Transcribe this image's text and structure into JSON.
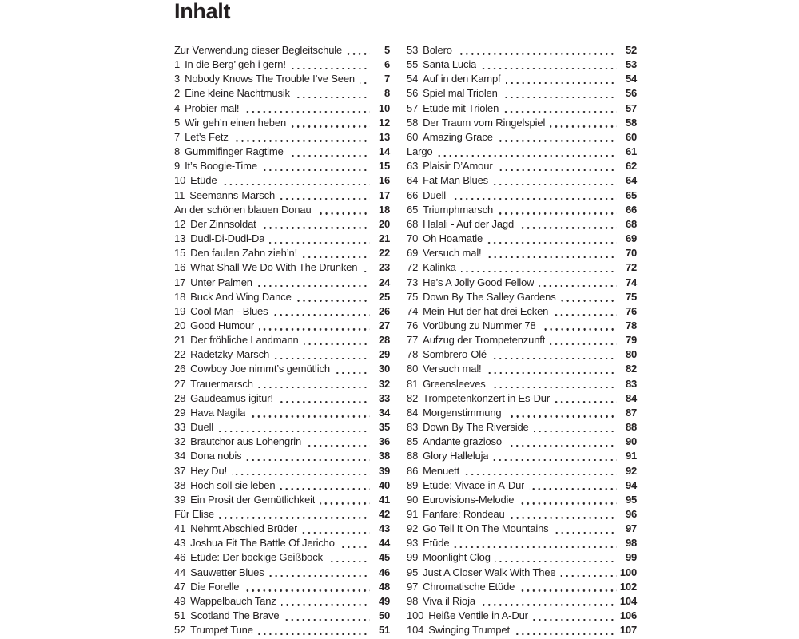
{
  "page": {
    "title": "Inhalt"
  },
  "toc": {
    "columns": [
      {
        "entries": [
          {
            "num": "",
            "title": "Zur Verwendung dieser Begleitschule",
            "page": "5"
          },
          {
            "num": "1",
            "title": "In die Berg’ geh i gern!",
            "page": "6"
          },
          {
            "num": "3",
            "title": "Nobody Knows The Trouble I’ve Seen",
            "page": "7"
          },
          {
            "num": "2",
            "title": "Eine kleine Nachtmusik",
            "page": "8"
          },
          {
            "num": "4",
            "title": "Probier mal!",
            "page": "10"
          },
          {
            "num": "5",
            "title": "Wir geh’n einen heben",
            "page": "12"
          },
          {
            "num": "7",
            "title": "Let’s Fetz",
            "page": "13"
          },
          {
            "num": "8",
            "title": "Gummifinger Ragtime",
            "page": "14"
          },
          {
            "num": "9",
            "title": "It’s Boogie-Time",
            "page": "15"
          },
          {
            "num": "10",
            "title": "Etüde",
            "page": "16"
          },
          {
            "num": "11",
            "title": "Seemanns-Marsch",
            "page": "17"
          },
          {
            "num": "",
            "title": "An der schönen blauen Donau",
            "page": "18"
          },
          {
            "num": "12",
            "title": "Der Zinnsoldat",
            "page": "20"
          },
          {
            "num": "13",
            "title": "Dudl-Di-Dudl-Da",
            "page": "21"
          },
          {
            "num": "15",
            "title": "Den faulen Zahn zieh’n!",
            "page": "22"
          },
          {
            "num": "16",
            "title": "What Shall We Do With The Drunken Sailor",
            "page": "23"
          },
          {
            "num": "17",
            "title": "Unter Palmen",
            "page": "24"
          },
          {
            "num": "18",
            "title": "Buck And Wing Dance",
            "page": "25"
          },
          {
            "num": "19",
            "title": "Cool Man - Blues",
            "page": "26"
          },
          {
            "num": "20",
            "title": "Good Humour",
            "page": "27"
          },
          {
            "num": "21",
            "title": "Der fröhliche Landmann",
            "page": "28"
          },
          {
            "num": "22",
            "title": "Radetzky-Marsch",
            "page": "29"
          },
          {
            "num": "26",
            "title": "Cowboy Joe nimmt’s gemütlich",
            "page": "30"
          },
          {
            "num": "27",
            "title": "Trauermarsch",
            "page": "32"
          },
          {
            "num": "28",
            "title": "Gaudeamus igitur!",
            "page": "33"
          },
          {
            "num": "29",
            "title": "Hava Nagila",
            "page": "34"
          },
          {
            "num": "33",
            "title": "Duell",
            "page": "35"
          },
          {
            "num": "32",
            "title": "Brautchor aus Lohengrin",
            "page": "36"
          },
          {
            "num": "34",
            "title": "Dona nobis",
            "page": "38"
          },
          {
            "num": "37",
            "title": "Hey Du!",
            "page": "39"
          },
          {
            "num": "38",
            "title": "Hoch soll sie leben",
            "page": "40"
          },
          {
            "num": "39",
            "title": "Ein Prosit der Gemütlichkeit",
            "page": "41"
          },
          {
            "num": "",
            "title": "Für Elise",
            "page": "42"
          },
          {
            "num": "41",
            "title": "Nehmt Abschied Brüder",
            "page": "43"
          },
          {
            "num": "43",
            "title": "Joshua Fit The Battle Of Jericho",
            "page": "44"
          },
          {
            "num": "46",
            "title": "Etüde: Der bockige Geißbock",
            "page": "45"
          },
          {
            "num": "44",
            "title": "Sauwetter Blues",
            "page": "46"
          },
          {
            "num": "47",
            "title": "Die Forelle",
            "page": "48"
          },
          {
            "num": "49",
            "title": "Wappelbauch Tanz",
            "page": "49"
          },
          {
            "num": "51",
            "title": "Scotland The Brave",
            "page": "50"
          },
          {
            "num": "52",
            "title": "Trumpet Tune",
            "page": "51"
          }
        ]
      },
      {
        "entries": [
          {
            "num": "53",
            "title": "Bolero",
            "page": "52"
          },
          {
            "num": "55",
            "title": "Santa Lucia",
            "page": "53"
          },
          {
            "num": "54",
            "title": "Auf in den Kampf",
            "page": "54"
          },
          {
            "num": "56",
            "title": "Spiel mal Triolen",
            "page": "56"
          },
          {
            "num": "57",
            "title": "Etüde mit Triolen",
            "page": "57"
          },
          {
            "num": "58",
            "title": "Der Traum vom Ringelspiel",
            "page": "58"
          },
          {
            "num": "60",
            "title": "Amazing Grace",
            "page": "60"
          },
          {
            "num": "",
            "title": "Largo",
            "page": "61"
          },
          {
            "num": "63",
            "title": "Plaisir D’Amour",
            "page": "62"
          },
          {
            "num": "64",
            "title": "Fat Man Blues",
            "page": "64"
          },
          {
            "num": "66",
            "title": "Duell",
            "page": "65"
          },
          {
            "num": "65",
            "title": "Triumphmarsch",
            "page": "66"
          },
          {
            "num": "68",
            "title": "Halali - Auf der Jagd",
            "page": "68"
          },
          {
            "num": "70",
            "title": "Oh Hoamatle",
            "page": "69"
          },
          {
            "num": "69",
            "title": "Versuch mal!",
            "page": "70"
          },
          {
            "num": "72",
            "title": "Kalinka",
            "page": "72"
          },
          {
            "num": "73",
            "title": "He’s A Jolly Good Fellow",
            "page": "74"
          },
          {
            "num": "75",
            "title": "Down By The Salley Gardens",
            "page": "75"
          },
          {
            "num": "74",
            "title": "Mein Hut der hat drei Ecken",
            "page": "76"
          },
          {
            "num": "76",
            "title": "Vorübung zu Nummer 78",
            "page": "78"
          },
          {
            "num": "77",
            "title": "Aufzug der Trompetenzunft",
            "page": "79"
          },
          {
            "num": "78",
            "title": "Sombrero-Olé",
            "page": "80"
          },
          {
            "num": "80",
            "title": "Versuch mal!",
            "page": "82"
          },
          {
            "num": "81",
            "title": "Greensleeves",
            "page": "83"
          },
          {
            "num": "82",
            "title": "Trompetenkonzert in Es-Dur",
            "page": "84"
          },
          {
            "num": "84",
            "title": "Morgenstimmung",
            "page": "87"
          },
          {
            "num": "83",
            "title": "Down By The Riverside",
            "page": "88"
          },
          {
            "num": "85",
            "title": "Andante grazioso",
            "page": "90"
          },
          {
            "num": "88",
            "title": "Glory Halleluja",
            "page": "91"
          },
          {
            "num": "86",
            "title": "Menuett",
            "page": "92"
          },
          {
            "num": "89",
            "title": "Etüde: Vivace in A-Dur",
            "page": "94"
          },
          {
            "num": "90",
            "title": "Eurovisions-Melodie",
            "page": "95"
          },
          {
            "num": "91",
            "title": "Fanfare: Rondeau",
            "page": "96"
          },
          {
            "num": "92",
            "title": "Go Tell It On The Mountains",
            "page": "97"
          },
          {
            "num": "93",
            "title": "Etüde",
            "page": "98"
          },
          {
            "num": "99",
            "title": "Moonlight Clog",
            "page": "99"
          },
          {
            "num": "95",
            "title": "Just A Closer Walk With Thee",
            "page": "100"
          },
          {
            "num": "97",
            "title": "Chromatische Etüde",
            "page": "102"
          },
          {
            "num": "98",
            "title": "Viva il Rioja",
            "page": "104"
          },
          {
            "num": "100",
            "title": "Heiße Ventile in A-Dur",
            "page": "106"
          },
          {
            "num": "104",
            "title": "Swinging Trumpet",
            "page": "107"
          }
        ]
      }
    ]
  },
  "colors": {
    "text": "#231f20",
    "background": "#ffffff"
  }
}
